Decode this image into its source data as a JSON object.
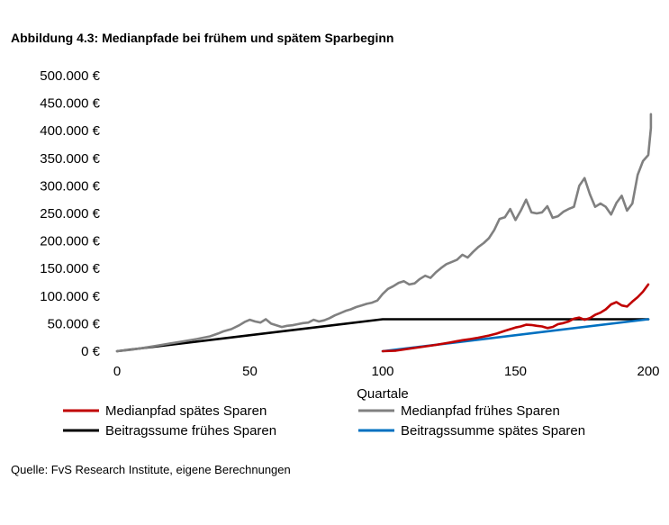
{
  "title": "Abbildung 4.3: Medianpfade bei frühem und spätem Sparbeginn",
  "source": "Quelle: FvS Research Institute, eigene Berechnungen",
  "chart_data": {
    "type": "line",
    "xlabel": "Quartale",
    "ylabel": "",
    "xlim": [
      0,
      200
    ],
    "ylim": [
      0,
      500000
    ],
    "x_ticks": [
      0,
      50,
      100,
      150,
      200
    ],
    "x_tick_labels": [
      "0",
      "50",
      "100",
      "150",
      "200"
    ],
    "y_ticks": [
      0,
      50000,
      100000,
      150000,
      200000,
      250000,
      300000,
      350000,
      400000,
      450000,
      500000
    ],
    "y_tick_labels": [
      "0 €",
      "50.000 €",
      "100.000 €",
      "150.000 €",
      "200.000 €",
      "250.000 €",
      "300.000 €",
      "350.000 €",
      "400.000 €",
      "450.000 €",
      "500.000 €"
    ],
    "grid": false,
    "legend_position": "bottom",
    "series": [
      {
        "name": "Medianpfad spätes Sparen",
        "color": "#c00000",
        "points": [
          [
            100,
            0
          ],
          [
            105,
            1000
          ],
          [
            110,
            4500
          ],
          [
            115,
            8000
          ],
          [
            120,
            11500
          ],
          [
            125,
            15500
          ],
          [
            130,
            20000
          ],
          [
            133,
            22000
          ],
          [
            136,
            24500
          ],
          [
            140,
            28500
          ],
          [
            143,
            32000
          ],
          [
            146,
            37000
          ],
          [
            150,
            43000
          ],
          [
            152,
            45000
          ],
          [
            154,
            48000
          ],
          [
            156,
            47500
          ],
          [
            158,
            46000
          ],
          [
            160,
            45000
          ],
          [
            162,
            42000
          ],
          [
            164,
            44000
          ],
          [
            166,
            49000
          ],
          [
            168,
            51000
          ],
          [
            170,
            54000
          ],
          [
            172,
            59000
          ],
          [
            174,
            61000
          ],
          [
            176,
            57000
          ],
          [
            178,
            60000
          ],
          [
            180,
            66000
          ],
          [
            182,
            70000
          ],
          [
            184,
            76000
          ],
          [
            186,
            85000
          ],
          [
            188,
            89000
          ],
          [
            190,
            83000
          ],
          [
            192,
            81000
          ],
          [
            194,
            90000
          ],
          [
            196,
            98000
          ],
          [
            198,
            108000
          ],
          [
            200,
            121000
          ]
        ]
      },
      {
        "name": "Medianpfad frühes Sparen",
        "color": "#808080",
        "points": [
          [
            0,
            0
          ],
          [
            5,
            2500
          ],
          [
            10,
            6000
          ],
          [
            15,
            10000
          ],
          [
            20,
            14000
          ],
          [
            25,
            18000
          ],
          [
            30,
            22000
          ],
          [
            35,
            27000
          ],
          [
            38,
            32000
          ],
          [
            40,
            36000
          ],
          [
            43,
            40000
          ],
          [
            46,
            47000
          ],
          [
            48,
            53000
          ],
          [
            50,
            57000
          ],
          [
            52,
            54000
          ],
          [
            54,
            52000
          ],
          [
            56,
            58000
          ],
          [
            58,
            50000
          ],
          [
            60,
            47000
          ],
          [
            62,
            44000
          ],
          [
            64,
            46000
          ],
          [
            66,
            47000
          ],
          [
            68,
            49000
          ],
          [
            70,
            51000
          ],
          [
            72,
            52000
          ],
          [
            74,
            57000
          ],
          [
            76,
            54000
          ],
          [
            78,
            56000
          ],
          [
            80,
            60000
          ],
          [
            82,
            65000
          ],
          [
            84,
            69000
          ],
          [
            86,
            73000
          ],
          [
            88,
            76000
          ],
          [
            90,
            80000
          ],
          [
            92,
            83000
          ],
          [
            94,
            86000
          ],
          [
            96,
            88000
          ],
          [
            98,
            92000
          ],
          [
            100,
            104000
          ],
          [
            102,
            113000
          ],
          [
            104,
            118000
          ],
          [
            106,
            124000
          ],
          [
            108,
            127000
          ],
          [
            110,
            121000
          ],
          [
            112,
            123000
          ],
          [
            114,
            131000
          ],
          [
            116,
            137000
          ],
          [
            118,
            133000
          ],
          [
            120,
            143000
          ],
          [
            122,
            151000
          ],
          [
            124,
            158000
          ],
          [
            126,
            162000
          ],
          [
            128,
            166000
          ],
          [
            130,
            175000
          ],
          [
            132,
            170000
          ],
          [
            134,
            180000
          ],
          [
            136,
            189000
          ],
          [
            138,
            196000
          ],
          [
            140,
            205000
          ],
          [
            142,
            220000
          ],
          [
            144,
            240000
          ],
          [
            146,
            243000
          ],
          [
            148,
            258000
          ],
          [
            150,
            238000
          ],
          [
            152,
            255000
          ],
          [
            154,
            275000
          ],
          [
            156,
            252000
          ],
          [
            158,
            250000
          ],
          [
            160,
            252000
          ],
          [
            162,
            263000
          ],
          [
            164,
            242000
          ],
          [
            166,
            245000
          ],
          [
            168,
            253000
          ],
          [
            170,
            258000
          ],
          [
            172,
            262000
          ],
          [
            174,
            300000
          ],
          [
            176,
            314000
          ],
          [
            178,
            285000
          ],
          [
            180,
            262000
          ],
          [
            182,
            268000
          ],
          [
            184,
            262000
          ],
          [
            186,
            248000
          ],
          [
            188,
            269000
          ],
          [
            190,
            282000
          ],
          [
            192,
            255000
          ],
          [
            194,
            268000
          ],
          [
            196,
            320000
          ],
          [
            198,
            345000
          ],
          [
            200,
            356000
          ],
          [
            202,
            405000
          ],
          [
            204,
            430000
          ]
        ]
      },
      {
        "name": "Beitragssume frühes Sparen",
        "color": "#000000",
        "points": [
          [
            0,
            0
          ],
          [
            100,
            58000
          ],
          [
            200,
            58000
          ]
        ]
      },
      {
        "name": "Beitragssumme spätes Sparen",
        "color": "#0070c0",
        "points": [
          [
            100,
            0
          ],
          [
            200,
            58000
          ]
        ]
      }
    ]
  }
}
